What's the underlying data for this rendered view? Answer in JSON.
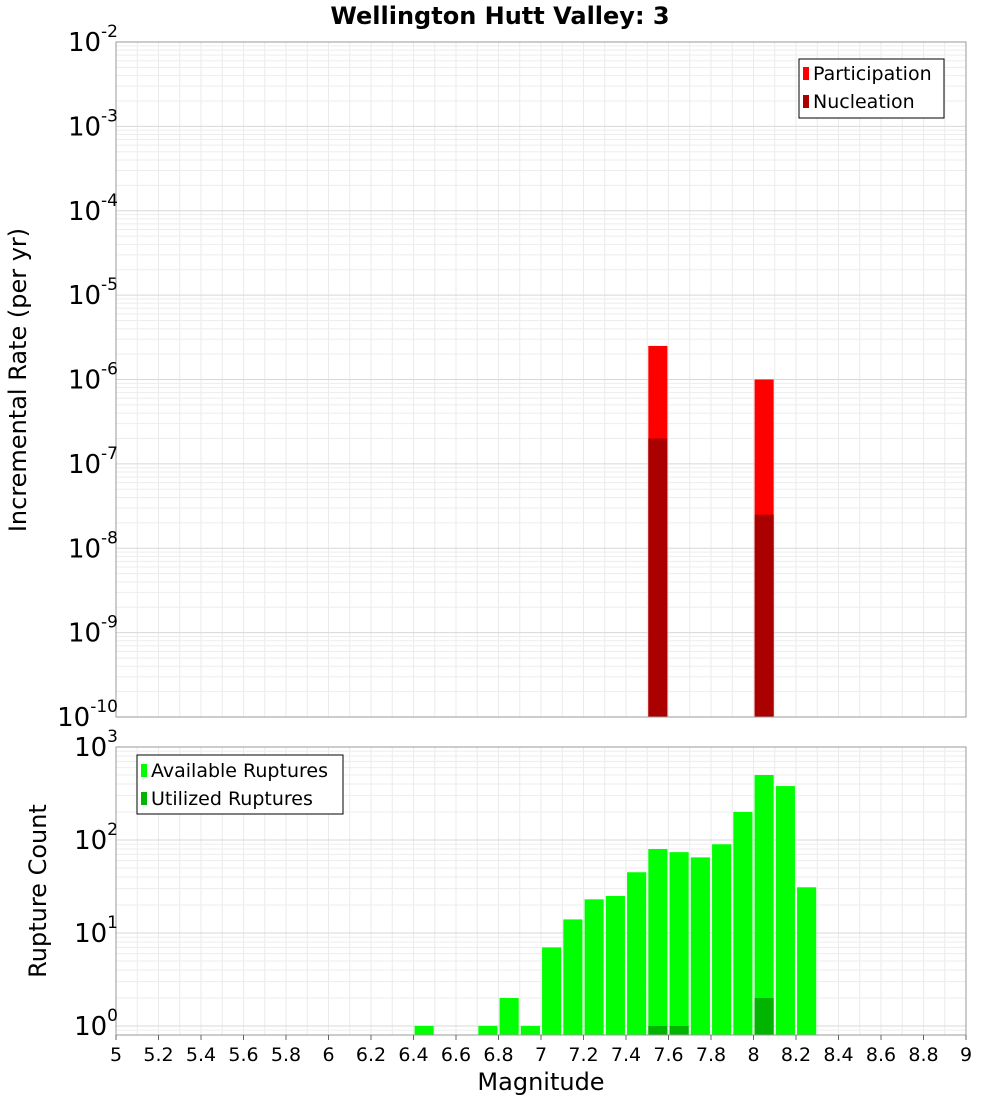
{
  "chart_data": [
    {
      "type": "bar",
      "title": "Wellington Hutt Valley: 3",
      "ylabel": "Incremental Rate (per yr)",
      "yscale": "log",
      "ylim": [
        1e-10,
        0.01
      ],
      "xlim": [
        5,
        9
      ],
      "grid": true,
      "legend_position": "top-right",
      "y_tick_labels": [
        "10-10",
        "10-9",
        "10-8",
        "10-7",
        "10-6",
        "10-5",
        "10-4",
        "10-3",
        "10-2"
      ],
      "series": [
        {
          "name": "Participation",
          "color": "#ff0000",
          "points": [
            {
              "x": 7.55,
              "y": 2.5e-06
            },
            {
              "x": 8.05,
              "y": 1e-06
            }
          ]
        },
        {
          "name": "Nucleation",
          "color": "#aa0000",
          "points": [
            {
              "x": 7.55,
              "y": 2e-07
            },
            {
              "x": 8.05,
              "y": 2.5e-08
            }
          ]
        }
      ]
    },
    {
      "type": "bar",
      "ylabel": "Rupture Count",
      "xlabel": "Magnitude",
      "yscale": "log",
      "ylim": [
        0.8,
        1000
      ],
      "xlim": [
        5,
        9
      ],
      "grid": true,
      "legend_position": "top-left",
      "x_ticks": [
        "5",
        "5.2",
        "5.4",
        "5.6",
        "5.8",
        "6",
        "6.2",
        "6.4",
        "6.6",
        "6.8",
        "7",
        "7.2",
        "7.4",
        "7.6",
        "7.8",
        "8",
        "8.2",
        "8.4",
        "8.6",
        "8.8",
        "9"
      ],
      "y_tick_labels": [
        "100",
        "101",
        "102",
        "103"
      ],
      "series": [
        {
          "name": "Available Ruptures",
          "color": "#00ff00",
          "points": [
            {
              "x": 6.45,
              "y": 1
            },
            {
              "x": 6.75,
              "y": 1
            },
            {
              "x": 6.85,
              "y": 2
            },
            {
              "x": 6.95,
              "y": 1
            },
            {
              "x": 7.05,
              "y": 7
            },
            {
              "x": 7.15,
              "y": 14
            },
            {
              "x": 7.25,
              "y": 23
            },
            {
              "x": 7.35,
              "y": 25
            },
            {
              "x": 7.45,
              "y": 45
            },
            {
              "x": 7.55,
              "y": 80
            },
            {
              "x": 7.65,
              "y": 74
            },
            {
              "x": 7.75,
              "y": 65
            },
            {
              "x": 7.85,
              "y": 90
            },
            {
              "x": 7.95,
              "y": 200
            },
            {
              "x": 8.05,
              "y": 500
            },
            {
              "x": 8.15,
              "y": 380
            },
            {
              "x": 8.25,
              "y": 31
            }
          ]
        },
        {
          "name": "Utilized Ruptures",
          "color": "#00b400",
          "points": [
            {
              "x": 7.55,
              "y": 1
            },
            {
              "x": 7.65,
              "y": 1
            },
            {
              "x": 8.05,
              "y": 2
            }
          ]
        }
      ]
    }
  ]
}
